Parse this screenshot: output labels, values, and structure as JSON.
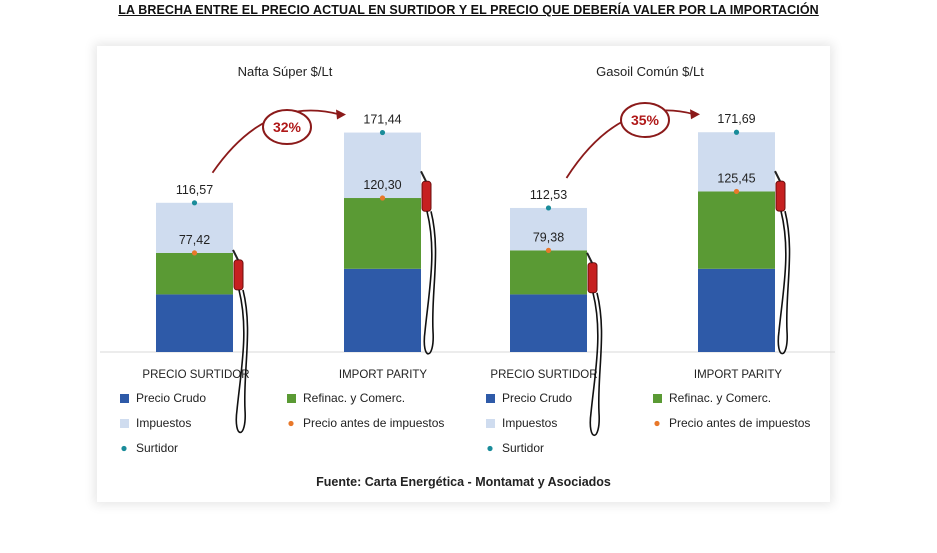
{
  "title": "LA BRECHA ENTRE EL PRECIO ACTUAL EN SURTIDOR Y EL PRECIO QUE DEBERÍA VALER POR LA IMPORTACIÓN",
  "source": "Fuente: Carta Energética - Montamat y Asociados",
  "colors": {
    "crudo": "#2e5aa8",
    "refinac": "#5a9a34",
    "impuestos": "#cfdcef",
    "precio_antes": "#e8782a",
    "surtidor": "#1a8c9a",
    "arrow": "#8b1a1a"
  },
  "chart_data": [
    {
      "type": "bar",
      "stacked": true,
      "title": "Nafta Súper $/Lt",
      "categories": [
        "PRECIO SURTIDOR",
        "IMPORT PARITY"
      ],
      "series": [
        {
          "name": "Precio Crudo",
          "values": [
            45,
            65
          ]
        },
        {
          "name": "Refinac. y Comerc.",
          "values": [
            32.42,
            55.3
          ]
        },
        {
          "name": "Impuestos",
          "values": [
            39.15,
            51.14
          ]
        }
      ],
      "markers": [
        {
          "name": "Precio antes de impuestos",
          "values": [
            77.42,
            120.3
          ],
          "labels": [
            "77,42",
            "120,30"
          ]
        },
        {
          "name": "Surtidor",
          "values": [
            116.57,
            171.44
          ],
          "labels": [
            "116,57",
            "171,44"
          ]
        }
      ],
      "gap_label": "32%",
      "ylim": [
        0,
        180
      ]
    },
    {
      "type": "bar",
      "stacked": true,
      "title": "Gasoil Común $/Lt",
      "categories": [
        "PRECIO SURTIDOR",
        "IMPORT PARITY"
      ],
      "series": [
        {
          "name": "Precio Crudo",
          "values": [
            45,
            65
          ]
        },
        {
          "name": "Refinac. y Comerc.",
          "values": [
            34.38,
            60.45
          ]
        },
        {
          "name": "Impuestos",
          "values": [
            33.15,
            46.24
          ]
        }
      ],
      "markers": [
        {
          "name": "Precio antes de impuestos",
          "values": [
            79.38,
            125.45
          ],
          "labels": [
            "79,38",
            "125,45"
          ]
        },
        {
          "name": "Surtidor",
          "values": [
            112.53,
            171.69
          ],
          "labels": [
            "112,53",
            "171,69"
          ]
        }
      ],
      "gap_label": "35%",
      "ylim": [
        0,
        180
      ]
    }
  ],
  "legend": {
    "items": [
      {
        "label": "Precio Crudo",
        "key": "crudo",
        "shape": "square"
      },
      {
        "label": "Refinac. y Comerc.",
        "key": "refinac",
        "shape": "square"
      },
      {
        "label": "Impuestos",
        "key": "impuestos",
        "shape": "square"
      },
      {
        "label": "Precio antes de impuestos",
        "key": "precio_antes",
        "shape": "dot"
      },
      {
        "label": "Surtidor",
        "key": "surtidor",
        "shape": "dot"
      }
    ]
  }
}
